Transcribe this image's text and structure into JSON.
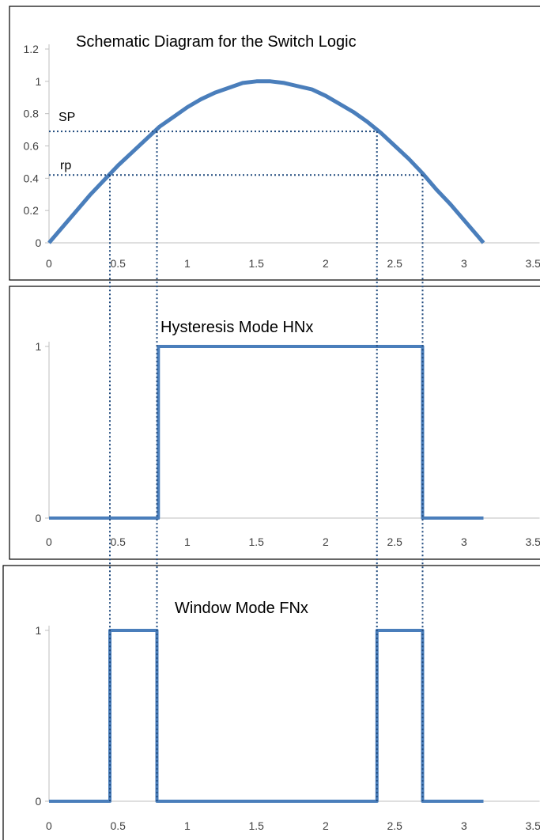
{
  "colors": {
    "series": "#4a7ebb",
    "axis": "#bfbfbf",
    "frame": "#000000",
    "guide": "#1f497d",
    "text": "#000000"
  },
  "chart_data": [
    {
      "type": "line",
      "title": "Schematic Diagram for the Switch Logic",
      "xlim": [
        0,
        3.5
      ],
      "ylim": [
        0,
        1.2
      ],
      "x_ticks": [
        "0",
        "0.5",
        "1",
        "1.5",
        "2",
        "2.5",
        "3",
        "3.5"
      ],
      "y_ticks": [
        "0",
        "0.2",
        "0.4",
        "0.6",
        "0.8",
        "1",
        "1.2"
      ],
      "grid": false,
      "series": [
        {
          "x": [
            0,
            0.1,
            0.2,
            0.3,
            0.4,
            0.5,
            0.6,
            0.7,
            0.8,
            0.9,
            1.0,
            1.1,
            1.2,
            1.3,
            1.4,
            1.5,
            1.6,
            1.7,
            1.8,
            1.9,
            2.0,
            2.1,
            2.2,
            2.3,
            2.4,
            2.5,
            2.6,
            2.7,
            2.8,
            2.9,
            3.0,
            3.1,
            3.14
          ],
          "y": [
            0,
            0.1,
            0.2,
            0.3,
            0.39,
            0.48,
            0.56,
            0.64,
            0.72,
            0.78,
            0.84,
            0.89,
            0.93,
            0.96,
            0.99,
            1.0,
            1.0,
            0.99,
            0.97,
            0.95,
            0.91,
            0.86,
            0.81,
            0.75,
            0.68,
            0.6,
            0.52,
            0.43,
            0.33,
            0.24,
            0.14,
            0.04,
            0
          ]
        }
      ],
      "annotations": [
        {
          "text": "SP",
          "y": 0.69,
          "x_from": 0,
          "x_to": 2.37
        },
        {
          "text": "rp",
          "y": 0.42,
          "x_from": 0,
          "x_to": 2.7
        }
      ]
    },
    {
      "type": "line",
      "title": "Hysteresis Mode HNx",
      "xlim": [
        0,
        3.5
      ],
      "ylim": [
        0,
        1
      ],
      "x_ticks": [
        "0",
        "0.5",
        "1",
        "1.5",
        "2",
        "2.5",
        "3",
        "3.5"
      ],
      "y_ticks": [
        "0",
        "1"
      ],
      "grid": false,
      "series": [
        {
          "x": [
            0,
            0.79,
            0.79,
            2.7,
            2.7,
            3.14
          ],
          "y": [
            0,
            0,
            1,
            1,
            0,
            0
          ]
        }
      ]
    },
    {
      "type": "line",
      "title": "Window Mode FNx",
      "xlim": [
        0,
        3.5
      ],
      "ylim": [
        0,
        1
      ],
      "x_ticks": [
        "0",
        "0.5",
        "1",
        "1.5",
        "2",
        "2.5",
        "3",
        "3.5"
      ],
      "y_ticks": [
        "0",
        "1"
      ],
      "grid": false,
      "series": [
        {
          "x": [
            0,
            0.44,
            0.44,
            0.78,
            0.78,
            2.37,
            2.37,
            2.7,
            2.7,
            3.14
          ],
          "y": [
            0,
            0,
            1,
            1,
            0,
            0,
            1,
            1,
            0,
            0
          ]
        }
      ]
    }
  ],
  "switch_points": [
    0.44,
    0.78,
    2.37,
    2.7
  ]
}
